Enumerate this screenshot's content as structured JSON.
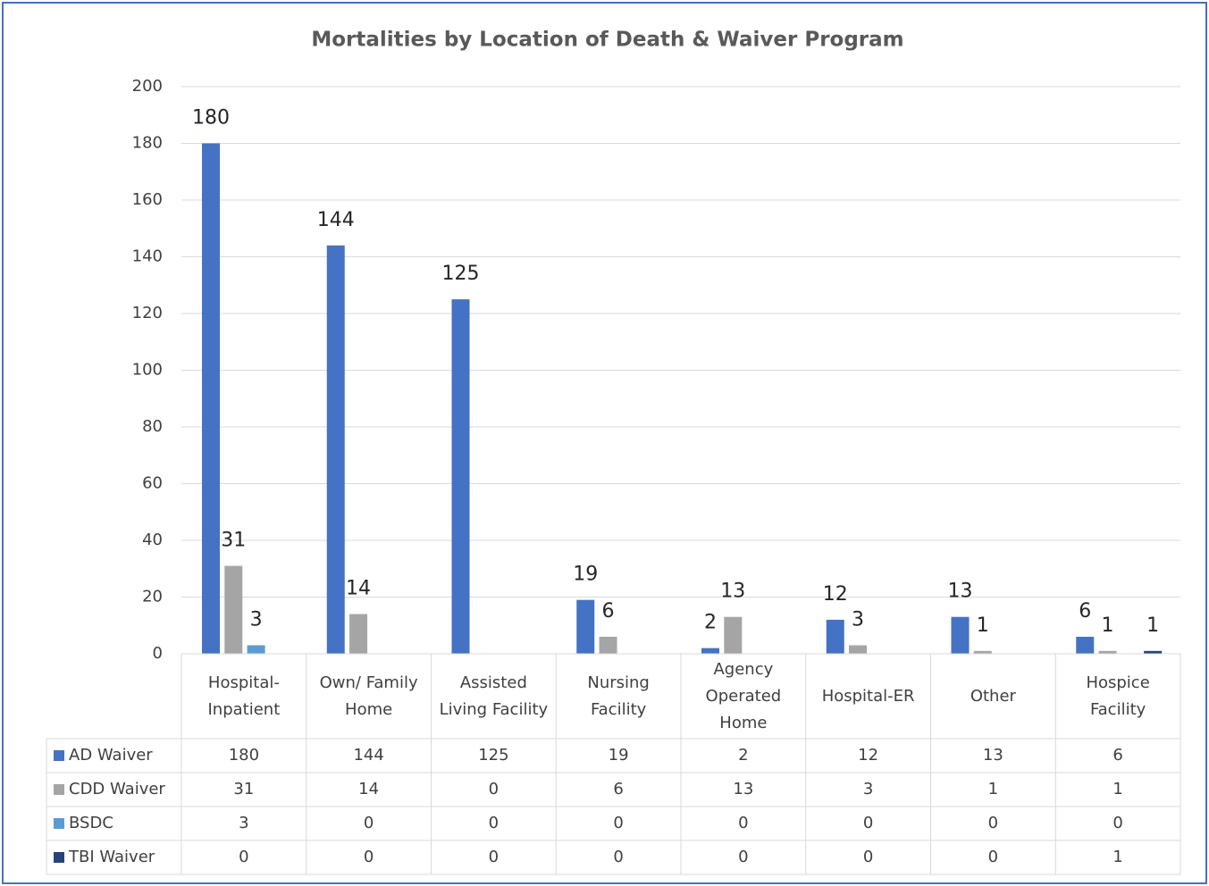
{
  "chart_data": {
    "type": "bar",
    "title": "Mortalities by Location of Death & Waiver Program",
    "categories": [
      "Hospital-Inpatient",
      "Own/ Family Home",
      "Assisted Living Facility",
      "Nursing Facility",
      "Agency Operated Home",
      "Hospital-ER",
      "Other",
      "Hospice Facility"
    ],
    "series": [
      {
        "name": "AD Waiver",
        "color": "#4472c4",
        "values": [
          180,
          144,
          125,
          19,
          2,
          12,
          13,
          6
        ]
      },
      {
        "name": "CDD Waiver",
        "color": "#a5a5a5",
        "values": [
          31,
          14,
          0,
          6,
          13,
          3,
          1,
          1
        ]
      },
      {
        "name": "BSDC",
        "color": "#5b9bd5",
        "values": [
          3,
          0,
          0,
          0,
          0,
          0,
          0,
          0
        ]
      },
      {
        "name": "TBI Waiver",
        "color": "#264478",
        "values": [
          0,
          0,
          0,
          0,
          0,
          0,
          0,
          1
        ]
      }
    ],
    "ylim": [
      0,
      200
    ],
    "yticks": [
      0,
      20,
      40,
      60,
      80,
      100,
      120,
      140,
      160,
      180,
      200
    ],
    "grid": true,
    "data_table": true
  }
}
